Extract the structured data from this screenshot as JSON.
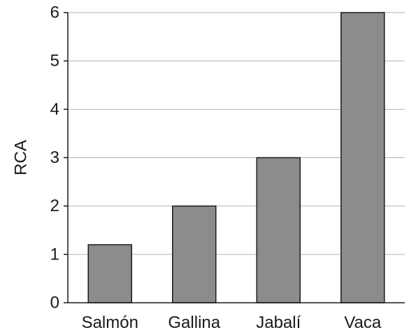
{
  "chart_data": {
    "type": "bar",
    "title": "",
    "xlabel": "",
    "ylabel": "RCA",
    "categories": [
      "Salmón",
      "Gallina",
      "Jabalí",
      "Vaca"
    ],
    "values": [
      1.2,
      2,
      3,
      6
    ],
    "ylim": [
      0,
      6
    ],
    "yticks": [
      "0",
      "1",
      "2",
      "3",
      "4",
      "5",
      "6"
    ],
    "grid": true,
    "bar_color": "#8c8c8c",
    "bar_stroke_color": "#1a1a1a",
    "grid_color": "#b3b3b3"
  }
}
